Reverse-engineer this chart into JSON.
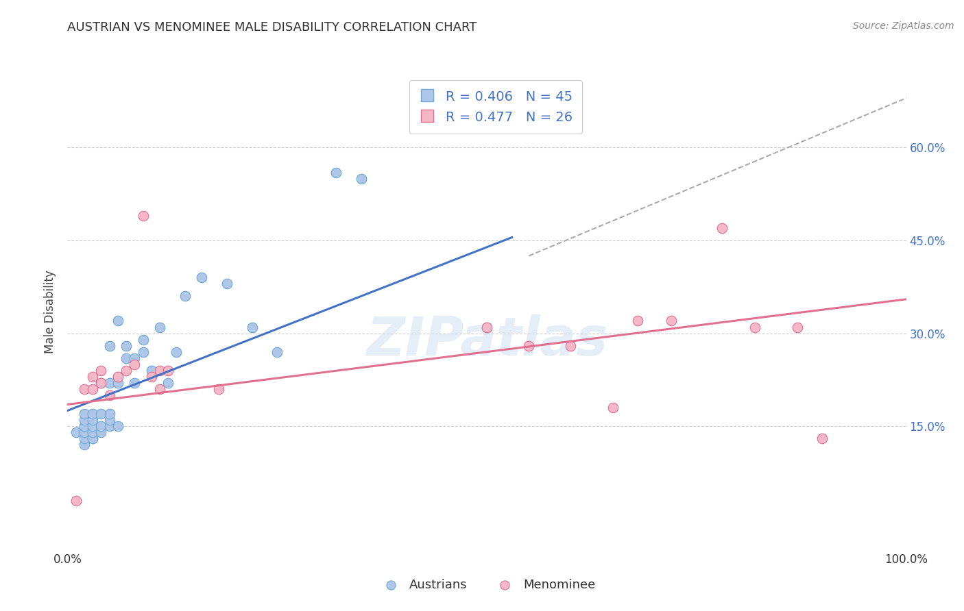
{
  "title": "AUSTRIAN VS MENOMINEE MALE DISABILITY CORRELATION CHART",
  "source": "Source: ZipAtlas.com",
  "ylabel": "Male Disability",
  "ytick_labels": [
    "15.0%",
    "30.0%",
    "45.0%",
    "60.0%"
  ],
  "ytick_values": [
    0.15,
    0.3,
    0.45,
    0.6
  ],
  "xlim": [
    0.0,
    1.0
  ],
  "ylim": [
    -0.05,
    0.72
  ],
  "background_color": "#ffffff",
  "grid_color": "#cccccc",
  "watermark": "ZIPatlas",
  "austrians_color": "#aec6e8",
  "austrians_edge_color": "#6fa8d4",
  "menominee_color": "#f4b8c8",
  "menominee_edge_color": "#e07090",
  "blue_line_color": "#4472c4",
  "pink_line_color": "#e07090",
  "dash_line_color": "#aaaaaa",
  "austrians_x": [
    0.01,
    0.02,
    0.02,
    0.02,
    0.02,
    0.02,
    0.02,
    0.02,
    0.03,
    0.03,
    0.03,
    0.03,
    0.03,
    0.03,
    0.04,
    0.04,
    0.04,
    0.04,
    0.05,
    0.05,
    0.05,
    0.05,
    0.05,
    0.06,
    0.06,
    0.06,
    0.06,
    0.07,
    0.07,
    0.08,
    0.08,
    0.09,
    0.09,
    0.1,
    0.11,
    0.12,
    0.13,
    0.14,
    0.16,
    0.19,
    0.22,
    0.25,
    0.32,
    0.35,
    0.5
  ],
  "austrians_y": [
    0.14,
    0.12,
    0.13,
    0.14,
    0.15,
    0.15,
    0.16,
    0.17,
    0.13,
    0.13,
    0.14,
    0.15,
    0.16,
    0.17,
    0.14,
    0.15,
    0.17,
    0.22,
    0.15,
    0.16,
    0.17,
    0.22,
    0.28,
    0.15,
    0.22,
    0.23,
    0.32,
    0.26,
    0.28,
    0.22,
    0.26,
    0.27,
    0.29,
    0.24,
    0.31,
    0.22,
    0.27,
    0.36,
    0.39,
    0.38,
    0.31,
    0.27,
    0.56,
    0.55,
    0.31
  ],
  "menominee_x": [
    0.01,
    0.02,
    0.03,
    0.03,
    0.04,
    0.04,
    0.05,
    0.06,
    0.07,
    0.08,
    0.09,
    0.1,
    0.11,
    0.12,
    0.5,
    0.55,
    0.6,
    0.65,
    0.68,
    0.72,
    0.78,
    0.82,
    0.87,
    0.9,
    0.18,
    0.11
  ],
  "menominee_y": [
    0.03,
    0.21,
    0.21,
    0.23,
    0.22,
    0.24,
    0.2,
    0.23,
    0.24,
    0.25,
    0.49,
    0.23,
    0.24,
    0.24,
    0.31,
    0.28,
    0.28,
    0.18,
    0.32,
    0.32,
    0.47,
    0.31,
    0.31,
    0.13,
    0.21,
    0.21
  ],
  "blue_line_x": [
    0.0,
    0.53
  ],
  "blue_line_y": [
    0.175,
    0.455
  ],
  "pink_line_x": [
    0.0,
    1.0
  ],
  "pink_line_y": [
    0.185,
    0.355
  ],
  "dash_line_x": [
    0.55,
    1.0
  ],
  "dash_line_y": [
    0.425,
    0.68
  ]
}
